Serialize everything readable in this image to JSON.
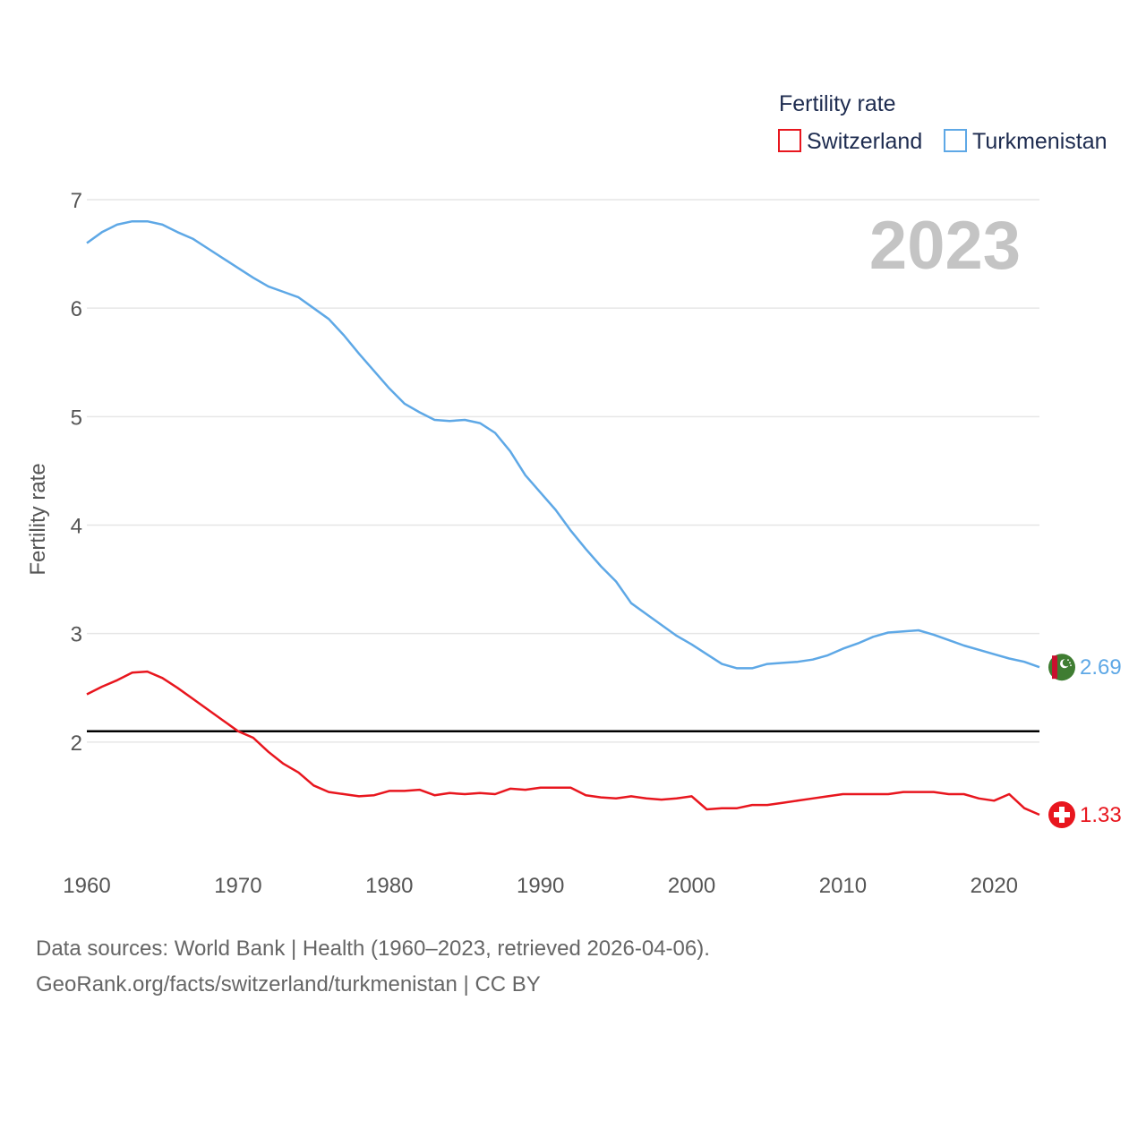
{
  "chart_data": {
    "type": "line",
    "title": "Fertility rate",
    "legend_title": "Fertility rate",
    "legend_position": "top-right",
    "year_label": "2023",
    "ylabel": "Fertility rate",
    "xlabel": "",
    "xlim": [
      1960,
      2023
    ],
    "ylim": [
      1,
      7
    ],
    "x_ticks": [
      1960,
      1970,
      1980,
      1990,
      2000,
      2010,
      2020
    ],
    "y_ticks": [
      2,
      3,
      4,
      5,
      6,
      7
    ],
    "reference_line": {
      "value": 2.1,
      "color": "#000000"
    },
    "x": [
      1960,
      1961,
      1962,
      1963,
      1964,
      1965,
      1966,
      1967,
      1968,
      1969,
      1970,
      1971,
      1972,
      1973,
      1974,
      1975,
      1976,
      1977,
      1978,
      1979,
      1980,
      1981,
      1982,
      1983,
      1984,
      1985,
      1986,
      1987,
      1988,
      1989,
      1990,
      1991,
      1992,
      1993,
      1994,
      1995,
      1996,
      1997,
      1998,
      1999,
      2000,
      2001,
      2002,
      2003,
      2004,
      2005,
      2006,
      2007,
      2008,
      2009,
      2010,
      2011,
      2012,
      2013,
      2014,
      2015,
      2016,
      2017,
      2018,
      2019,
      2020,
      2021,
      2022,
      2023
    ],
    "series": [
      {
        "name": "Switzerland",
        "color": "#e8161e",
        "end_value": "1.33",
        "flag": "switzerland-flag",
        "values": [
          2.44,
          2.51,
          2.57,
          2.64,
          2.65,
          2.59,
          2.5,
          2.4,
          2.3,
          2.2,
          2.1,
          2.04,
          1.91,
          1.8,
          1.72,
          1.6,
          1.54,
          1.52,
          1.5,
          1.51,
          1.55,
          1.55,
          1.56,
          1.51,
          1.53,
          1.52,
          1.53,
          1.52,
          1.57,
          1.56,
          1.58,
          1.58,
          1.58,
          1.51,
          1.49,
          1.48,
          1.5,
          1.48,
          1.47,
          1.48,
          1.5,
          1.38,
          1.39,
          1.39,
          1.42,
          1.42,
          1.44,
          1.46,
          1.48,
          1.5,
          1.52,
          1.52,
          1.52,
          1.52,
          1.54,
          1.54,
          1.54,
          1.52,
          1.52,
          1.48,
          1.46,
          1.52,
          1.39,
          1.33
        ]
      },
      {
        "name": "Turkmenistan",
        "color": "#5ea8e6",
        "end_value": "2.69",
        "flag": "turkmenistan-flag",
        "values": [
          6.6,
          6.7,
          6.77,
          6.8,
          6.8,
          6.77,
          6.7,
          6.64,
          6.55,
          6.46,
          6.37,
          6.28,
          6.2,
          6.15,
          6.1,
          6.0,
          5.9,
          5.75,
          5.58,
          5.42,
          5.26,
          5.12,
          5.04,
          4.97,
          4.96,
          4.97,
          4.94,
          4.85,
          4.68,
          4.46,
          4.3,
          4.14,
          3.95,
          3.78,
          3.62,
          3.48,
          3.28,
          3.18,
          3.08,
          2.98,
          2.9,
          2.81,
          2.72,
          2.68,
          2.68,
          2.72,
          2.73,
          2.74,
          2.76,
          2.8,
          2.86,
          2.91,
          2.97,
          3.01,
          3.02,
          3.03,
          2.99,
          2.94,
          2.89,
          2.85,
          2.81,
          2.77,
          2.74,
          2.69
        ]
      }
    ]
  },
  "source": {
    "line1": "Data sources: World Bank | Health (1960–2023, retrieved 2026-04-06).",
    "line2": "GeoRank.org/facts/switzerland/turkmenistan | CC BY"
  }
}
